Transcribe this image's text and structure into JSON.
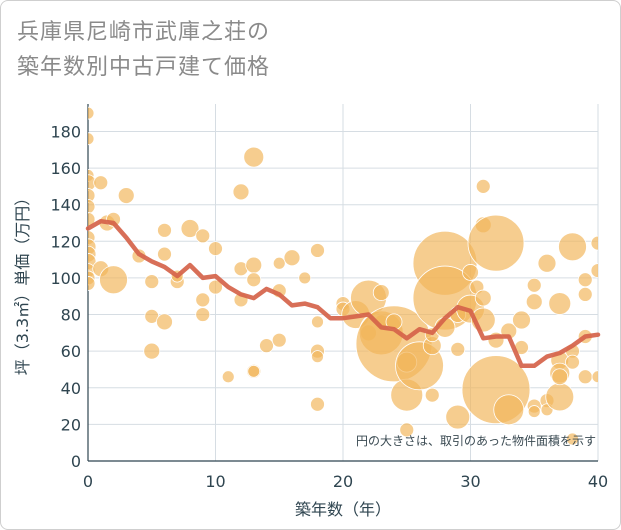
{
  "title_line1": "兵庫県尼崎市武庫之荘の",
  "title_line2": "築年数別中古戸建て価格",
  "chart_data": {
    "type": "scatter",
    "xlabel": "築年数（年）",
    "ylabel": "坪（3.3㎡）単価（万円）",
    "xlim": [
      0,
      40
    ],
    "ylim": [
      0,
      195
    ],
    "xticks": [
      "0",
      "10",
      "20",
      "30",
      "40"
    ],
    "yticks": [
      "0",
      "20",
      "40",
      "60",
      "80",
      "100",
      "120",
      "140",
      "160",
      "180"
    ],
    "grid": true,
    "annotation": "円の大きさは、取引のあった物件面積を示す",
    "bubble_color": "#f2b55a",
    "line_color": "#d5634a",
    "bubbles": [
      {
        "x": 0,
        "y": 190,
        "s": 6
      },
      {
        "x": 0,
        "y": 176,
        "s": 6
      },
      {
        "x": 0,
        "y": 156,
        "s": 6
      },
      {
        "x": 0,
        "y": 152,
        "s": 8
      },
      {
        "x": 0,
        "y": 145,
        "s": 7
      },
      {
        "x": 0,
        "y": 139,
        "s": 7
      },
      {
        "x": 0,
        "y": 132,
        "s": 7
      },
      {
        "x": 0,
        "y": 122,
        "s": 7
      },
      {
        "x": 0,
        "y": 117,
        "s": 8
      },
      {
        "x": 0,
        "y": 113,
        "s": 8
      },
      {
        "x": 0,
        "y": 109,
        "s": 8
      },
      {
        "x": 0,
        "y": 104,
        "s": 7
      },
      {
        "x": 0,
        "y": 100,
        "s": 7
      },
      {
        "x": 0,
        "y": 97,
        "s": 7
      },
      {
        "x": 1,
        "y": 152,
        "s": 7
      },
      {
        "x": 1,
        "y": 105,
        "s": 8
      },
      {
        "x": 1.5,
        "y": 130,
        "s": 8
      },
      {
        "x": 2,
        "y": 132,
        "s": 7
      },
      {
        "x": 2,
        "y": 99,
        "s": 14
      },
      {
        "x": 3,
        "y": 145,
        "s": 8
      },
      {
        "x": 4,
        "y": 112,
        "s": 7
      },
      {
        "x": 5,
        "y": 98,
        "s": 7
      },
      {
        "x": 5,
        "y": 79,
        "s": 7
      },
      {
        "x": 5,
        "y": 60,
        "s": 8
      },
      {
        "x": 6,
        "y": 126,
        "s": 7
      },
      {
        "x": 6,
        "y": 113,
        "s": 7
      },
      {
        "x": 6,
        "y": 76,
        "s": 8
      },
      {
        "x": 7,
        "y": 98,
        "s": 7
      },
      {
        "x": 7,
        "y": 101,
        "s": 6
      },
      {
        "x": 8,
        "y": 127,
        "s": 9
      },
      {
        "x": 9,
        "y": 123,
        "s": 7
      },
      {
        "x": 9,
        "y": 88,
        "s": 7
      },
      {
        "x": 9,
        "y": 80,
        "s": 7
      },
      {
        "x": 10,
        "y": 116,
        "s": 7
      },
      {
        "x": 10,
        "y": 95,
        "s": 7
      },
      {
        "x": 11,
        "y": 46,
        "s": 6
      },
      {
        "x": 12,
        "y": 147,
        "s": 8
      },
      {
        "x": 12,
        "y": 105,
        "s": 7
      },
      {
        "x": 12,
        "y": 88,
        "s": 7
      },
      {
        "x": 13,
        "y": 166,
        "s": 10
      },
      {
        "x": 13,
        "y": 107,
        "s": 8
      },
      {
        "x": 13,
        "y": 99,
        "s": 7
      },
      {
        "x": 13,
        "y": 49,
        "s": 7
      },
      {
        "x": 13,
        "y": 49,
        "s": 6
      },
      {
        "x": 14,
        "y": 63,
        "s": 7
      },
      {
        "x": 15,
        "y": 93,
        "s": 7
      },
      {
        "x": 15,
        "y": 108,
        "s": 6
      },
      {
        "x": 15,
        "y": 66,
        "s": 7
      },
      {
        "x": 16,
        "y": 111,
        "s": 8
      },
      {
        "x": 17,
        "y": 100,
        "s": 6
      },
      {
        "x": 18,
        "y": 115,
        "s": 7
      },
      {
        "x": 18,
        "y": 76,
        "s": 6
      },
      {
        "x": 18,
        "y": 60,
        "s": 7
      },
      {
        "x": 18,
        "y": 57,
        "s": 6
      },
      {
        "x": 18,
        "y": 31,
        "s": 7
      },
      {
        "x": 20,
        "y": 86,
        "s": 7
      },
      {
        "x": 20,
        "y": 83,
        "s": 7
      },
      {
        "x": 21,
        "y": 80,
        "s": 14
      },
      {
        "x": 22,
        "y": 89,
        "s": 18
      },
      {
        "x": 22,
        "y": 70,
        "s": 8
      },
      {
        "x": 23,
        "y": 92,
        "s": 8
      },
      {
        "x": 23,
        "y": 76,
        "s": 7
      },
      {
        "x": 23,
        "y": 70,
        "s": 22
      },
      {
        "x": 24,
        "y": 64,
        "s": 38
      },
      {
        "x": 24,
        "y": 76,
        "s": 8
      },
      {
        "x": 25,
        "y": 54,
        "s": 10
      },
      {
        "x": 25,
        "y": 36,
        "s": 16
      },
      {
        "x": 25,
        "y": 17,
        "s": 7
      },
      {
        "x": 26,
        "y": 52,
        "s": 24
      },
      {
        "x": 27,
        "y": 63,
        "s": 9
      },
      {
        "x": 27,
        "y": 69,
        "s": 7
      },
      {
        "x": 27,
        "y": 36,
        "s": 7
      },
      {
        "x": 28,
        "y": 108,
        "s": 32
      },
      {
        "x": 28,
        "y": 89,
        "s": 32
      },
      {
        "x": 28,
        "y": 73,
        "s": 10
      },
      {
        "x": 29,
        "y": 24,
        "s": 12
      },
      {
        "x": 29,
        "y": 61,
        "s": 7
      },
      {
        "x": 29,
        "y": 80,
        "s": 8
      },
      {
        "x": 30,
        "y": 83,
        "s": 14
      },
      {
        "x": 30,
        "y": 103,
        "s": 8
      },
      {
        "x": 30.5,
        "y": 95,
        "s": 7
      },
      {
        "x": 31,
        "y": 150,
        "s": 7
      },
      {
        "x": 31,
        "y": 129,
        "s": 8
      },
      {
        "x": 31,
        "y": 89,
        "s": 8
      },
      {
        "x": 31,
        "y": 77,
        "s": 12
      },
      {
        "x": 32,
        "y": 119,
        "s": 28
      },
      {
        "x": 32,
        "y": 39,
        "s": 34
      },
      {
        "x": 32,
        "y": 66,
        "s": 8
      },
      {
        "x": 33,
        "y": 71,
        "s": 8
      },
      {
        "x": 33,
        "y": 28,
        "s": 15
      },
      {
        "x": 34,
        "y": 77,
        "s": 9
      },
      {
        "x": 34,
        "y": 62,
        "s": 7
      },
      {
        "x": 35,
        "y": 96,
        "s": 7
      },
      {
        "x": 35,
        "y": 87,
        "s": 8
      },
      {
        "x": 35,
        "y": 30,
        "s": 7
      },
      {
        "x": 35,
        "y": 27,
        "s": 6
      },
      {
        "x": 36,
        "y": 108,
        "s": 9
      },
      {
        "x": 36,
        "y": 33,
        "s": 7
      },
      {
        "x": 36,
        "y": 28,
        "s": 6
      },
      {
        "x": 37,
        "y": 86,
        "s": 11
      },
      {
        "x": 37,
        "y": 55,
        "s": 9
      },
      {
        "x": 37,
        "y": 48,
        "s": 10
      },
      {
        "x": 37,
        "y": 35,
        "s": 14
      },
      {
        "x": 37,
        "y": 46,
        "s": 8
      },
      {
        "x": 38,
        "y": 117,
        "s": 14
      },
      {
        "x": 38,
        "y": 60,
        "s": 7
      },
      {
        "x": 38,
        "y": 54,
        "s": 7
      },
      {
        "x": 38,
        "y": 12,
        "s": 6
      },
      {
        "x": 39,
        "y": 99,
        "s": 7
      },
      {
        "x": 39,
        "y": 91,
        "s": 7
      },
      {
        "x": 39,
        "y": 68,
        "s": 7
      },
      {
        "x": 39,
        "y": 46,
        "s": 7
      },
      {
        "x": 40,
        "y": 119,
        "s": 7
      },
      {
        "x": 40,
        "y": 104,
        "s": 7
      },
      {
        "x": 40,
        "y": 46,
        "s": 6
      }
    ],
    "trend": {
      "x": [
        0,
        1,
        2,
        3,
        4,
        5,
        6,
        7,
        8,
        9,
        10,
        11,
        12,
        13,
        14,
        15,
        16,
        17,
        18,
        19,
        20,
        21,
        22,
        23,
        24,
        25,
        26,
        27,
        28,
        29,
        30,
        31,
        32,
        33,
        34,
        35,
        36,
        37,
        38,
        39,
        40
      ],
      "y": [
        127,
        131,
        130,
        122,
        113,
        109,
        106,
        101,
        107,
        100,
        101,
        95,
        91,
        89,
        94,
        91,
        85,
        86,
        84,
        78,
        78,
        79,
        80,
        73,
        72,
        67,
        72,
        70,
        78,
        84,
        82,
        67,
        68,
        68,
        52,
        52,
        57,
        59,
        63,
        68,
        69
      ]
    }
  }
}
